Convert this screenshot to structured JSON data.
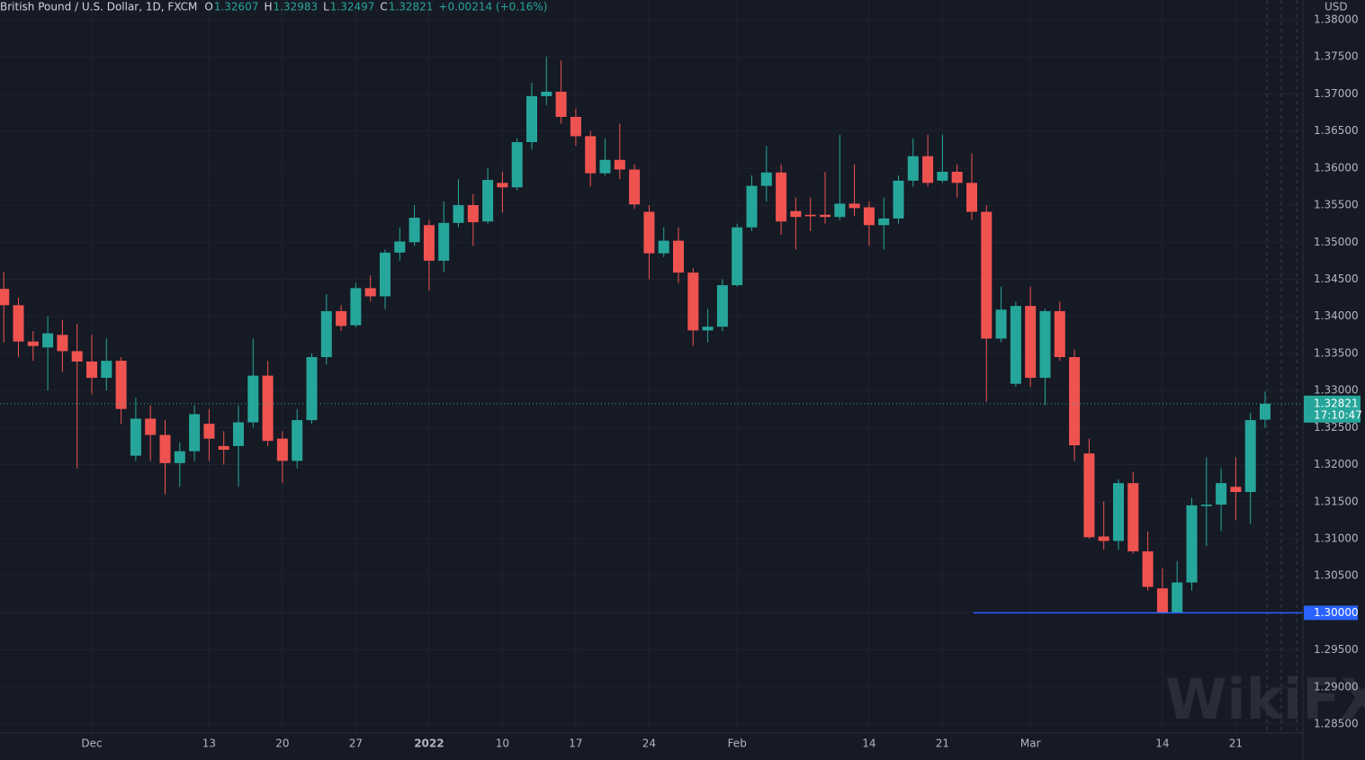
{
  "chart_data": {
    "type": "candlestick",
    "title": "British Pound / U.S. Dollar, 1D, FXCM",
    "ohlc_prefixes": [
      "O",
      "H",
      "L",
      "C"
    ],
    "change": "+0.00214 (+0.16%)",
    "currency": "USD",
    "countdown": "17:10:47",
    "watermark": "WikiFX",
    "up_color": "#26a69a",
    "down_color": "#ef5350",
    "categories": [
      null,
      null,
      null,
      null,
      null,
      null,
      "Dec",
      null,
      null,
      null,
      null,
      null,
      null,
      null,
      "13",
      null,
      null,
      null,
      null,
      "20",
      null,
      null,
      null,
      null,
      "27",
      null,
      null,
      null,
      null,
      "2022",
      null,
      null,
      null,
      null,
      "10",
      null,
      null,
      null,
      null,
      "17",
      null,
      null,
      null,
      null,
      "24",
      null,
      null,
      null,
      null,
      null,
      "Feb",
      null,
      null,
      null,
      null,
      null,
      null,
      null,
      null,
      "14",
      null,
      null,
      null,
      null,
      "21",
      null,
      null,
      null,
      null,
      null,
      "Mar",
      null,
      null,
      null,
      null,
      null,
      null,
      null,
      null,
      "14",
      null,
      null,
      null,
      null,
      "21",
      null,
      null
    ],
    "open": [
      1.3437,
      1.3415,
      1.3366,
      1.3358,
      1.3375,
      1.3353,
      1.3339,
      1.3317,
      1.334,
      1.3212,
      1.3262,
      1.324,
      1.3202,
      1.3218,
      1.3255,
      1.3225,
      1.3225,
      1.3257,
      1.332,
      1.3235,
      1.3205,
      1.326,
      1.3345,
      1.3407,
      1.3388,
      1.3438,
      1.3427,
      1.3486,
      1.35,
      1.3523,
      1.3475,
      1.3526,
      1.355,
      1.3528,
      1.358,
      1.3574,
      1.3635,
      1.3697,
      1.3703,
      1.3669,
      1.3643,
      1.3593,
      1.3611,
      1.3598,
      1.3541,
      1.3485,
      1.3502,
      1.3459,
      1.3381,
      1.3386,
      1.3442,
      1.352,
      1.3576,
      1.3594,
      1.3542,
      1.3537,
      1.3537,
      1.3534,
      1.3552,
      1.3547,
      1.3523,
      1.3532,
      1.3583,
      1.3616,
      1.3583,
      1.3595,
      1.358,
      1.3541,
      1.337,
      1.3309,
      1.3414,
      1.3317,
      1.3407,
      1.3345,
      1.3215,
      1.3103,
      1.3097,
      1.3175,
      1.3083,
      1.3033,
      1.3,
      1.3041,
      1.3144,
      1.3146,
      1.317,
      1.3163,
      1.32607
    ],
    "high": [
      1.346,
      1.3425,
      1.338,
      1.34,
      1.3395,
      1.339,
      1.3375,
      1.337,
      1.3345,
      1.329,
      1.328,
      1.326,
      1.323,
      1.328,
      1.3275,
      1.3245,
      1.328,
      1.337,
      1.334,
      1.3245,
      1.3275,
      1.335,
      1.343,
      1.3415,
      1.3445,
      1.3455,
      1.349,
      1.352,
      1.355,
      1.353,
      1.3555,
      1.3585,
      1.3565,
      1.36,
      1.3595,
      1.364,
      1.3715,
      1.375,
      1.3745,
      1.368,
      1.365,
      1.364,
      1.366,
      1.3605,
      1.355,
      1.352,
      1.352,
      1.3465,
      1.341,
      1.345,
      1.3525,
      1.359,
      1.363,
      1.3605,
      1.356,
      1.356,
      1.3595,
      1.3645,
      1.3605,
      1.3555,
      1.356,
      1.359,
      1.364,
      1.3645,
      1.3645,
      1.3605,
      1.362,
      1.355,
      1.344,
      1.342,
      1.344,
      1.341,
      1.342,
      1.3355,
      1.3235,
      1.315,
      1.318,
      1.319,
      1.311,
      1.306,
      1.307,
      1.3155,
      1.321,
      1.3195,
      1.321,
      1.327,
      1.32983
    ],
    "low": [
      1.3365,
      1.3345,
      1.334,
      1.33,
      1.3325,
      1.3195,
      1.3295,
      1.33,
      1.3255,
      1.3205,
      1.3205,
      1.316,
      1.317,
      1.3205,
      1.3205,
      1.32,
      1.317,
      1.325,
      1.3225,
      1.3175,
      1.3195,
      1.3255,
      1.3335,
      1.338,
      1.3385,
      1.342,
      1.341,
      1.3475,
      1.3495,
      1.3435,
      1.346,
      1.352,
      1.3495,
      1.3525,
      1.354,
      1.357,
      1.3625,
      1.3685,
      1.366,
      1.363,
      1.3575,
      1.359,
      1.3585,
      1.3545,
      1.345,
      1.348,
      1.3445,
      1.336,
      1.3365,
      1.338,
      1.344,
      1.3515,
      1.3555,
      1.351,
      1.349,
      1.3515,
      1.3525,
      1.353,
      1.3535,
      1.3495,
      1.349,
      1.3525,
      1.3575,
      1.3575,
      1.358,
      1.356,
      1.353,
      1.3285,
      1.3365,
      1.3305,
      1.3305,
      1.328,
      1.334,
      1.3205,
      1.31,
      1.3085,
      1.3085,
      1.308,
      1.303,
      1.3,
      1.3,
      1.303,
      1.309,
      1.311,
      1.3125,
      1.312,
      1.32497
    ],
    "close": [
      1.3415,
      1.3366,
      1.336,
      1.3377,
      1.3353,
      1.3339,
      1.3317,
      1.334,
      1.3275,
      1.3262,
      1.324,
      1.3202,
      1.3218,
      1.3268,
      1.3235,
      1.322,
      1.3257,
      1.332,
      1.3232,
      1.3205,
      1.326,
      1.3345,
      1.3407,
      1.3387,
      1.3438,
      1.3427,
      1.3486,
      1.3501,
      1.3533,
      1.3475,
      1.3526,
      1.355,
      1.3527,
      1.3584,
      1.3574,
      1.3635,
      1.3697,
      1.3703,
      1.3669,
      1.3643,
      1.3593,
      1.3611,
      1.3598,
      1.3551,
      1.3485,
      1.3502,
      1.3459,
      1.3381,
      1.3386,
      1.3442,
      1.352,
      1.3576,
      1.3594,
      1.3528,
      1.3534,
      1.3535,
      1.3534,
      1.3552,
      1.3546,
      1.3523,
      1.3532,
      1.3583,
      1.3616,
      1.358,
      1.3595,
      1.358,
      1.3541,
      1.337,
      1.3409,
      1.3414,
      1.3317,
      1.3407,
      1.3345,
      1.3226,
      1.3102,
      1.3097,
      1.3175,
      1.3083,
      1.3035,
      1.3,
      1.3041,
      1.3145,
      1.3146,
      1.3175,
      1.3163,
      1.326,
      1.32821
    ],
    "ylim": [
      1.28379,
      1.38267
    ],
    "yticks": [
      {
        "value": 1.285,
        "label": "1.28500"
      },
      {
        "value": 1.29,
        "label": "1.29000"
      },
      {
        "value": 1.295,
        "label": "1.29500"
      },
      {
        "value": 1.3,
        "label": "1.30000"
      },
      {
        "value": 1.305,
        "label": "1.30500"
      },
      {
        "value": 1.31,
        "label": "1.31000"
      },
      {
        "value": 1.315,
        "label": "1.31500"
      },
      {
        "value": 1.32,
        "label": "1.32000"
      },
      {
        "value": 1.325,
        "label": "1.32500"
      },
      {
        "value": 1.33,
        "label": "1.33000"
      },
      {
        "value": 1.335,
        "label": "1.33500"
      },
      {
        "value": 1.34,
        "label": "1.34000"
      },
      {
        "value": 1.345,
        "label": "1.34500"
      },
      {
        "value": 1.35,
        "label": "1.35000"
      },
      {
        "value": 1.355,
        "label": "1.35500"
      },
      {
        "value": 1.36,
        "label": "1.36000"
      },
      {
        "value": 1.365,
        "label": "1.36500"
      },
      {
        "value": 1.37,
        "label": "1.37000"
      },
      {
        "value": 1.375,
        "label": "1.37500"
      },
      {
        "value": 1.38,
        "label": "1.38000"
      }
    ],
    "hline": {
      "value": 1.3,
      "label": "1.30000",
      "color": "#2962ff"
    },
    "grid": true
  }
}
